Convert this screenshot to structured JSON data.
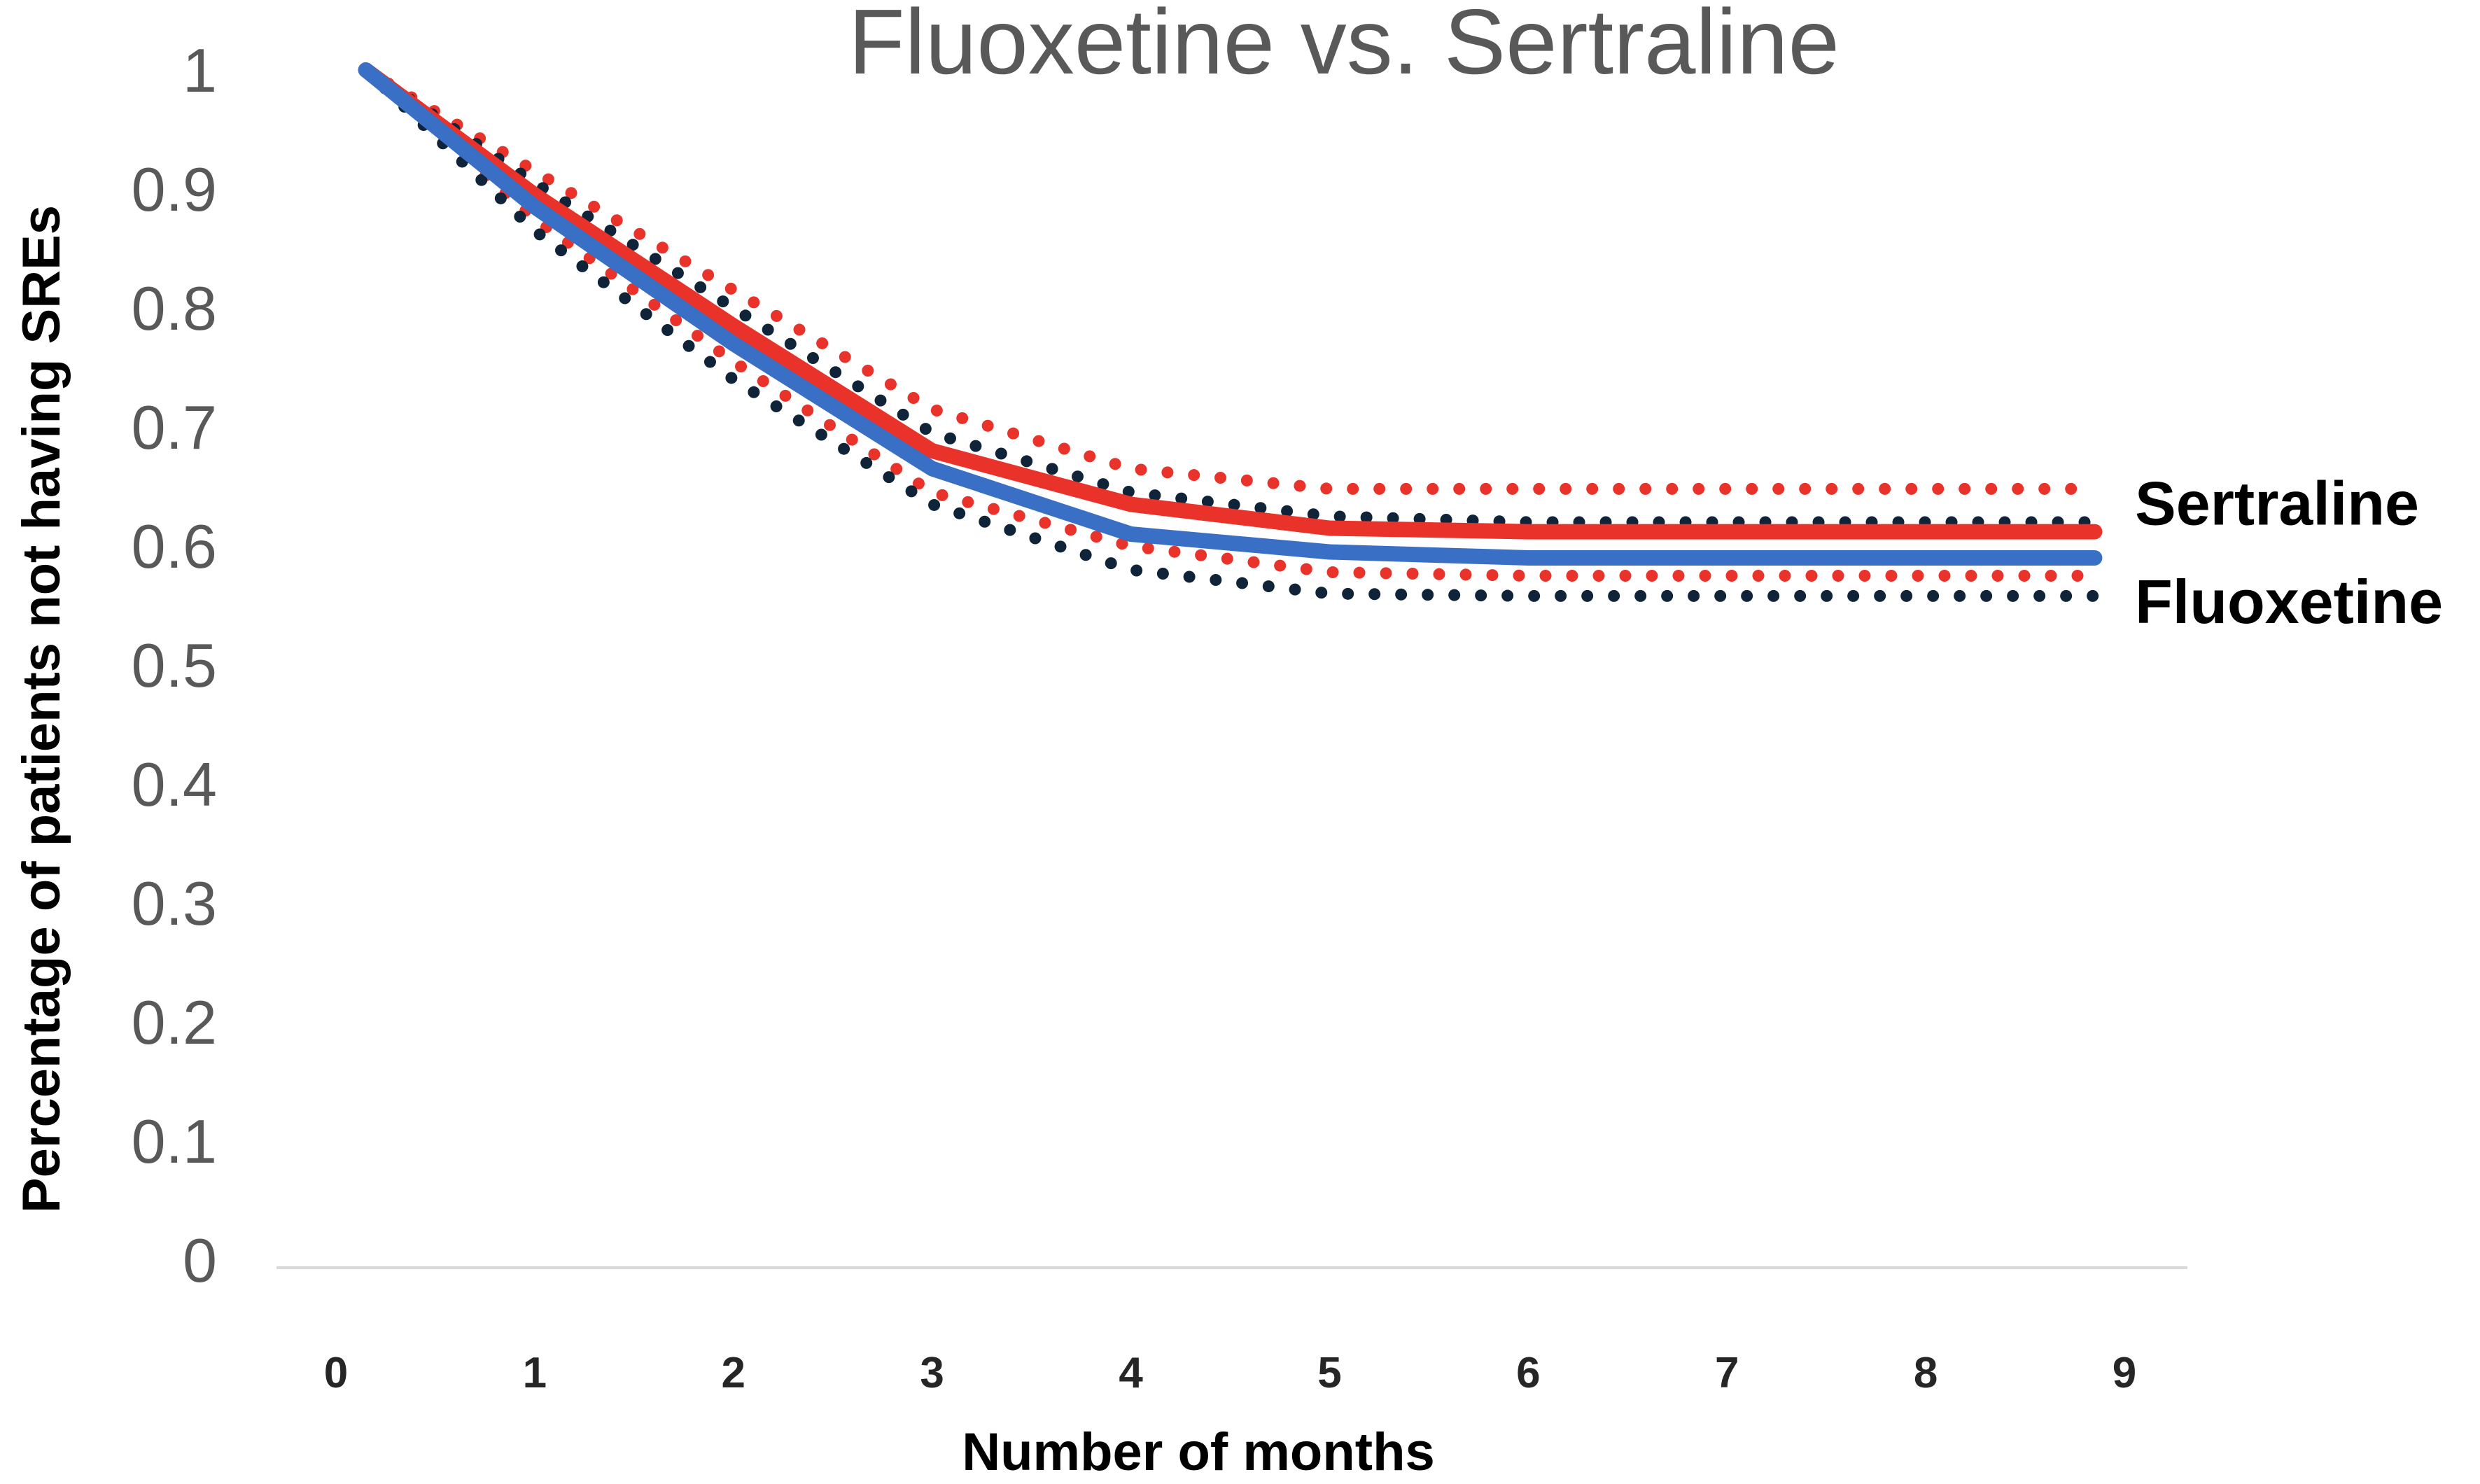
{
  "chart_data": {
    "type": "line",
    "title": "Fluoxetine vs. Sertraline",
    "xlabel": "Number of months",
    "ylabel": "Percentage of patients not having SREs",
    "x_ticks": [
      "0",
      "1",
      "2",
      "3",
      "4",
      "5",
      "6",
      "7",
      "8",
      "9"
    ],
    "y_ticks": [
      "0",
      "0.1",
      "0.2",
      "0.3",
      "0.4",
      "0.5",
      "0.6",
      "0.7",
      "0.8",
      "0.9",
      "1"
    ],
    "xlim": [
      0,
      9
    ],
    "ylim": [
      0,
      1
    ],
    "grid": false,
    "legend": "none",
    "x": [
      0.15,
      1,
      2,
      3,
      4,
      5,
      6,
      7,
      8,
      8.85
    ],
    "series": [
      {
        "name": "Sertraline",
        "style": "solid",
        "color": "#e8322a",
        "values": [
          1.0,
          0.895,
          0.785,
          0.68,
          0.635,
          0.615,
          0.612,
          0.612,
          0.612,
          0.612
        ]
      },
      {
        "name": "Fluoxetine",
        "style": "solid",
        "color": "#3a6fc6",
        "values": [
          1.0,
          0.885,
          0.77,
          0.665,
          0.61,
          0.595,
          0.59,
          0.59,
          0.59,
          0.59
        ]
      },
      {
        "style": "dotted",
        "color": "#e8322a",
        "values": [
          1.0,
          0.915,
          0.815,
          0.715,
          0.665,
          0.648,
          0.648,
          0.648,
          0.648,
          0.648
        ]
      },
      {
        "style": "dotted",
        "color": "#e8322a",
        "values": [
          1.0,
          0.875,
          0.755,
          0.645,
          0.6,
          0.578,
          0.575,
          0.575,
          0.575,
          0.575
        ]
      },
      {
        "style": "dotted",
        "color": "#0f2438",
        "values": [
          1.0,
          0.905,
          0.8,
          0.695,
          0.645,
          0.625,
          0.62,
          0.62,
          0.62,
          0.62
        ]
      },
      {
        "style": "dotted",
        "color": "#0f2438",
        "values": [
          1.0,
          0.865,
          0.74,
          0.635,
          0.58,
          0.56,
          0.558,
          0.558,
          0.558,
          0.558
        ]
      }
    ],
    "end_labels": [
      "Sertraline",
      "Fluoxetine"
    ]
  }
}
